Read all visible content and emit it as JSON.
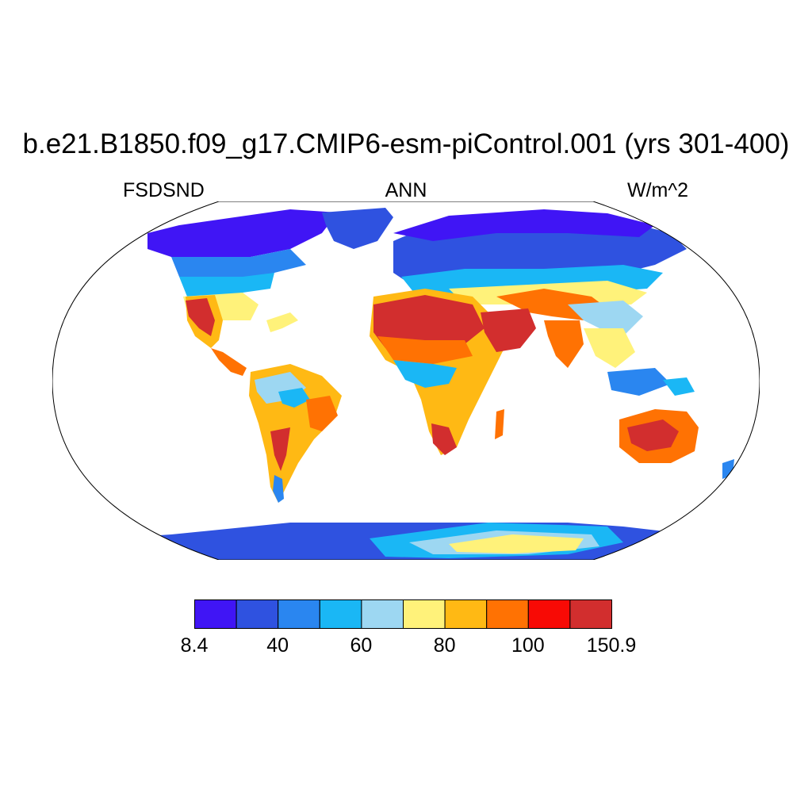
{
  "title": "b.e21.B1850.f09_g17.CMIP6-esm-piControl.001 (yrs 301-400)",
  "subtitles": {
    "left": "FSDSND",
    "center": "ANN",
    "right": "W/m^2"
  },
  "colors": [
    "#4015f5",
    "#2f52e0",
    "#2a86f0",
    "#1ab7f5",
    "#9dd7f2",
    "#fff27a",
    "#ffb914",
    "#ff7203",
    "#f80a05",
    "#d22e2e"
  ],
  "colorbar_labels": [
    {
      "text": "8.4",
      "index": 0
    },
    {
      "text": "40",
      "index": 2
    },
    {
      "text": "60",
      "index": 4
    },
    {
      "text": "80",
      "index": 6
    },
    {
      "text": "100",
      "index": 8
    },
    {
      "text": "150.9",
      "index": 10
    }
  ]
}
